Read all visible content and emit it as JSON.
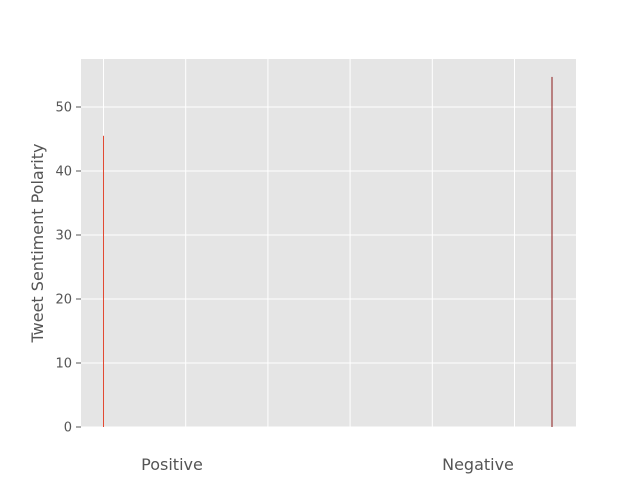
{
  "chart_data": {
    "type": "bar",
    "title": "",
    "xlabel": "",
    "ylabel": "Tweet Sentiment Polarity",
    "categories": [
      "Positive",
      "Negative"
    ],
    "values": [
      45.5,
      54.7
    ],
    "bar_colors": [
      "#E24A33",
      "#8B1A1A"
    ],
    "ylim": [
      0,
      57.5
    ],
    "yticks": [
      0,
      10,
      20,
      30,
      40,
      50
    ],
    "grid": true,
    "legend": "none",
    "background": "#E5E5E5",
    "grid_color": "#FFFFFF"
  }
}
